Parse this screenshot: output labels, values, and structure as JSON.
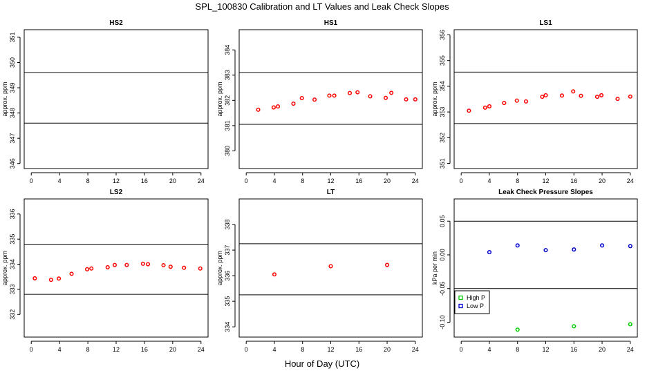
{
  "title": "SPL_100830  Calibration and LT Values and Leak Check Slopes",
  "xlabel": "Hour of Day (UTC)",
  "colors": {
    "calibration": "#ff0000",
    "high_p": "#00cc00",
    "low_p": "#0000cc",
    "axis": "#000000"
  },
  "chart_data": [
    {
      "type": "scatter",
      "title": "HS2",
      "xlabel": "",
      "ylabel": "approx. ppm",
      "xlim": [
        -1,
        25
      ],
      "ylim": [
        345.8,
        351.3
      ],
      "x_ticks": [
        0,
        4,
        8,
        12,
        16,
        20,
        24
      ],
      "y_ticks": [
        346,
        347,
        348,
        349,
        350,
        351
      ],
      "hlines": [
        349.6,
        347.6
      ],
      "series": [
        {
          "color": "#ff0000",
          "points": []
        }
      ]
    },
    {
      "type": "scatter",
      "title": "HS1",
      "xlabel": "",
      "ylabel": "approx. ppm",
      "xlim": [
        -1,
        25
      ],
      "ylim": [
        379.3,
        384.8
      ],
      "x_ticks": [
        0,
        4,
        8,
        12,
        16,
        20,
        24
      ],
      "y_ticks": [
        380,
        381,
        382,
        383,
        384
      ],
      "hlines": [
        383.1,
        381.05
      ],
      "series": [
        {
          "color": "#ff0000",
          "points": [
            [
              1.7,
              381.63
            ],
            [
              3.9,
              381.72
            ],
            [
              4.5,
              381.76
            ],
            [
              6.7,
              381.87
            ],
            [
              7.9,
              382.09
            ],
            [
              9.7,
              382.03
            ],
            [
              11.8,
              382.19
            ],
            [
              12.5,
              382.19
            ],
            [
              14.7,
              382.29
            ],
            [
              15.8,
              382.32
            ],
            [
              17.6,
              382.16
            ],
            [
              19.8,
              382.1
            ],
            [
              20.6,
              382.3
            ],
            [
              22.7,
              382.04
            ],
            [
              24.0,
              382.04
            ]
          ]
        }
      ]
    },
    {
      "type": "scatter",
      "title": "LS1",
      "xlabel": "",
      "ylabel": "approx. ppm",
      "xlim": [
        -1,
        25
      ],
      "ylim": [
        350.8,
        356.2
      ],
      "x_ticks": [
        0,
        4,
        8,
        12,
        16,
        20,
        24
      ],
      "y_ticks": [
        351,
        352,
        353,
        354,
        355,
        356
      ],
      "hlines": [
        354.55,
        352.55
      ],
      "series": [
        {
          "color": "#ff0000",
          "points": [
            [
              1.1,
              353.05
            ],
            [
              3.4,
              353.17
            ],
            [
              4.0,
              353.22
            ],
            [
              6.1,
              353.35
            ],
            [
              7.9,
              353.44
            ],
            [
              9.2,
              353.41
            ],
            [
              11.5,
              353.59
            ],
            [
              12.0,
              353.65
            ],
            [
              14.3,
              353.64
            ],
            [
              15.9,
              353.8
            ],
            [
              17.0,
              353.63
            ],
            [
              19.3,
              353.59
            ],
            [
              19.9,
              353.65
            ],
            [
              22.2,
              353.51
            ],
            [
              24.0,
              353.6
            ]
          ]
        }
      ]
    },
    {
      "type": "scatter",
      "title": "LS2",
      "xlabel": "",
      "ylabel": "approx. ppm",
      "xlim": [
        -1,
        25
      ],
      "ylim": [
        331.1,
        336.6
      ],
      "x_ticks": [
        0,
        4,
        8,
        12,
        16,
        20,
        24
      ],
      "y_ticks": [
        332,
        333,
        334,
        335,
        336
      ],
      "hlines": [
        334.8,
        332.8
      ],
      "series": [
        {
          "color": "#ff0000",
          "points": [
            [
              0.5,
              333.44
            ],
            [
              2.8,
              333.38
            ],
            [
              3.9,
              333.43
            ],
            [
              5.7,
              333.62
            ],
            [
              7.9,
              333.8
            ],
            [
              8.5,
              333.83
            ],
            [
              10.8,
              333.88
            ],
            [
              11.8,
              333.97
            ],
            [
              13.5,
              333.97
            ],
            [
              15.8,
              334.02
            ],
            [
              16.5,
              334.0
            ],
            [
              18.7,
              333.96
            ],
            [
              19.7,
              333.9
            ],
            [
              21.6,
              333.86
            ],
            [
              23.9,
              333.83
            ]
          ]
        }
      ]
    },
    {
      "type": "scatter",
      "title": "LT",
      "xlabel": "",
      "ylabel": "approx. ppm",
      "xlim": [
        -1,
        25
      ],
      "ylim": [
        333.6,
        339.0
      ],
      "x_ticks": [
        0,
        4,
        8,
        12,
        16,
        20,
        24
      ],
      "y_ticks": [
        334,
        335,
        336,
        337,
        338
      ],
      "hlines": [
        337.25,
        335.25
      ],
      "series": [
        {
          "color": "#ff0000",
          "points": [
            [
              4.0,
              336.05
            ],
            [
              12.0,
              336.37
            ],
            [
              20.0,
              336.42
            ]
          ]
        }
      ]
    },
    {
      "type": "scatter",
      "title": "Leak Check Pressure Slopes",
      "xlabel": "",
      "ylabel": "kPa per min",
      "xlim": [
        -1,
        25
      ],
      "ylim": [
        -0.122,
        0.083
      ],
      "x_ticks": [
        0,
        4,
        8,
        12,
        16,
        20,
        24
      ],
      "y_ticks": [
        -0.1,
        -0.05,
        0.0,
        0.05
      ],
      "y_tick_labels": [
        "-0.10",
        "-0.05",
        "0.00",
        "0.05"
      ],
      "hlines": [
        0.05,
        -0.05
      ],
      "legend": {
        "position": "bottom-left",
        "entries": [
          "High P",
          "Low P"
        ]
      },
      "series": [
        {
          "name": "High P",
          "color": "#00cc00",
          "points": [
            [
              8,
              -0.111
            ],
            [
              16,
              -0.106
            ],
            [
              24,
              -0.103
            ]
          ]
        },
        {
          "name": "Low P",
          "color": "#0000cc",
          "points": [
            [
              4,
              0.004
            ],
            [
              8,
              0.014
            ],
            [
              12,
              0.007
            ],
            [
              16,
              0.008
            ],
            [
              20,
              0.014
            ],
            [
              24,
              0.013
            ]
          ]
        }
      ]
    }
  ]
}
